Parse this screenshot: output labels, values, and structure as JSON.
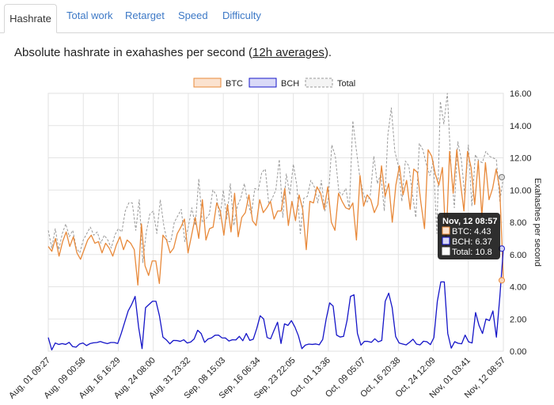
{
  "tabs": [
    {
      "label": "Hashrate",
      "active": true
    },
    {
      "label": "Total work",
      "active": false
    },
    {
      "label": "Retarget",
      "active": false
    },
    {
      "label": "Speed",
      "active": false
    },
    {
      "label": "Difficulty",
      "active": false
    }
  ],
  "subtitle": {
    "before": "Absolute hashrate in exahashes per second (",
    "link": "12h averages",
    "after": ")."
  },
  "colors": {
    "btc": "#e8893a",
    "bch": "#1515c8",
    "total": "#999999",
    "grid": "#e4e4e4"
  },
  "chart_data": {
    "type": "line",
    "ylabel": "Exahashes per second",
    "ylim": [
      0,
      16
    ],
    "y_ticks": [
      "0.00",
      "2.00",
      "4.00",
      "6.00",
      "8.00",
      "10.00",
      "12.00",
      "14.00",
      "16.00"
    ],
    "x_ticks": [
      "Aug, 01 09:27",
      "Aug, 09 00:58",
      "Aug, 16 16:29",
      "Aug, 24 08:00",
      "Aug, 31 23:32",
      "Sep, 08 15:03",
      "Sep, 16 06:34",
      "Sep, 23 22:05",
      "Oct, 01 13:36",
      "Oct, 09 05:07",
      "Oct, 16 20:38",
      "Oct, 24 12:09",
      "Nov, 01 03:41",
      "Nov, 12 08:57"
    ],
    "legend": [
      "BTC",
      "BCH",
      "Total"
    ],
    "series": [
      {
        "name": "BTC",
        "values": [
          6.5,
          6.2,
          7,
          5.9,
          6.8,
          7.4,
          6.5,
          7.1,
          6.1,
          5.7,
          6.3,
          6.9,
          7.2,
          6.7,
          6.8,
          6.1,
          6.7,
          6.4,
          5.9,
          6.6,
          7.1,
          6.3,
          6.9,
          6.7,
          6.3,
          4.1,
          7.9,
          5.3,
          4.7,
          5.6,
          5.6,
          4.2,
          7.2,
          6.9,
          6.1,
          6.4,
          7.3,
          7.7,
          8.2,
          6.1,
          7.2,
          8.3,
          7,
          9.4,
          6.9,
          7.6,
          7.7,
          9.2,
          8.7,
          7.2,
          9.1,
          7.4,
          9.8,
          7.1,
          8.3,
          8.6,
          9.7,
          8.1,
          7.8,
          9.4,
          8.6,
          8.9,
          9.3,
          8.2,
          8.7,
          8.7,
          10.1,
          7.8,
          9.3,
          8.1,
          9.7,
          8.8,
          6.3,
          9.3,
          9.2,
          10.2,
          9.8,
          8.8,
          10.2,
          8,
          7.5,
          9.8,
          9.3,
          8.9,
          8.8,
          9.2,
          6.9,
          10.9,
          9,
          9.7,
          9.4,
          8.6,
          9.1,
          11.5,
          9.6,
          10.4,
          8,
          10.3,
          11.5,
          9.7,
          10.6,
          8.8,
          11.3,
          11.1,
          9.2,
          7.6,
          12.5,
          12.1,
          11,
          10.3,
          11.4,
          6.5,
          12.4,
          9.8,
          12.5,
          10.5,
          8.7,
          12.4,
          11.4,
          9.1,
          11.8,
          8.4,
          11.7,
          9.4,
          10.1,
          11.3,
          10.1,
          4.4
        ]
      },
      {
        "name": "BCH",
        "values": [
          0.85,
          0.08,
          0.51,
          0.42,
          0.47,
          0.42,
          0.55,
          0.29,
          0.25,
          0.45,
          0.51,
          0.35,
          0.47,
          0.52,
          0.54,
          0.6,
          0.53,
          0.47,
          0.54,
          0.54,
          0.48,
          1.1,
          1.8,
          2.5,
          2.9,
          3.4,
          1.5,
          0.16,
          2.7,
          2.9,
          3.1,
          3.1,
          2.2,
          0.88,
          0.7,
          0.46,
          0.67,
          0.66,
          0.61,
          0.71,
          0.51,
          0.57,
          0.76,
          1.3,
          1.1,
          0.55,
          0.76,
          0.83,
          0.99,
          1.0,
          0.83,
          0.82,
          0.63,
          0.71,
          0.7,
          0.92,
          0.65,
          1.1,
          0.67,
          0.74,
          1.4,
          2.2,
          2.0,
          0.85,
          0.77,
          1.3,
          1.8,
          0.48,
          1.7,
          1.6,
          1.9,
          1.5,
          0.96,
          0.16,
          0.38,
          0.44,
          0.42,
          0.45,
          0.4,
          0.73,
          2.0,
          3.0,
          2.8,
          1.0,
          0.88,
          0.92,
          1.9,
          3.4,
          3.5,
          1.1,
          0.38,
          0.61,
          0.61,
          0.55,
          0.77,
          0.58,
          0.67,
          3.1,
          3.6,
          2.7,
          0.91,
          0.51,
          0.45,
          0.39,
          0.55,
          0.74,
          0.44,
          0.39,
          0.62,
          0.59,
          0.41,
          0.84,
          3.1,
          4.3,
          4.3,
          1.1,
          0.19,
          0.59,
          0.49,
          0.46,
          1.0,
          0.58,
          0.51,
          2.4,
          1.6,
          1.1,
          2.0,
          1.9,
          2.5,
          0.87,
          3.4,
          6.37
        ]
      },
      {
        "name": "Total",
        "values": [
          7.5,
          6.4,
          7.6,
          6.3,
          7.3,
          7.9,
          7.1,
          7.5,
          6.4,
          6.1,
          6.9,
          7.3,
          7.7,
          7.2,
          7.4,
          6.7,
          7.2,
          6.9,
          6.4,
          7.2,
          7.6,
          7.4,
          8.7,
          9.2,
          9.2,
          7.5,
          9.4,
          5.5,
          7.4,
          8.5,
          8.7,
          7.3,
          9.4,
          7.8,
          6.8,
          6.8,
          8.0,
          8.4,
          8.8,
          6.8,
          7.7,
          8.9,
          7.8,
          10.7,
          8.0,
          8.2,
          8.5,
          10.0,
          9.7,
          8.2,
          10.0,
          8.2,
          10.4,
          7.8,
          9.0,
          9.5,
          10.4,
          9.2,
          8.5,
          10.1,
          10.0,
          11.1,
          11.3,
          9.1,
          9.5,
          10.0,
          11.9,
          8.3,
          11.0,
          9.7,
          11.6,
          10.3,
          7.3,
          9.5,
          9.6,
          10.6,
          10.2,
          9.2,
          10.6,
          8.7,
          9.5,
          12.8,
          12.1,
          9.9,
          9.7,
          10.1,
          8.8,
          14.3,
          12.5,
          10.8,
          9.8,
          9.2,
          9.7,
          12.1,
          10.4,
          11.0,
          8.7,
          13.4,
          15.1,
          12.4,
          11.5,
          9.3,
          11.8,
          11.5,
          9.8,
          8.3,
          12.9,
          12.5,
          11.6,
          10.9,
          11.8,
          7.3,
          15.5,
          14.1,
          16.8,
          11.6,
          8.9,
          13.0,
          11.9,
          9.6,
          12.8,
          9.0,
          12.2,
          11.8,
          11.7,
          12.4,
          12.1,
          12.0,
          11.9,
          9.3,
          10.8
        ]
      }
    ],
    "tooltip": {
      "title": "Nov, 12 08:57",
      "lines": [
        "BTC: 4.43",
        "BCH: 6.37",
        "Total: 10.8"
      ]
    },
    "grid": true,
    "legend_position": "top"
  }
}
